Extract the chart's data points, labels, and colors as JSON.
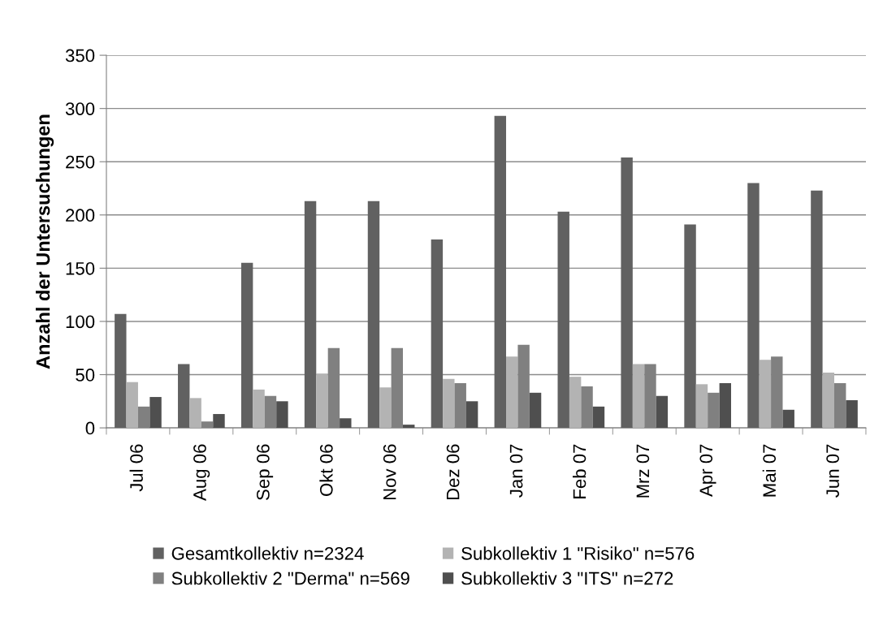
{
  "chart_data": {
    "type": "bar",
    "ylabel": "Anzahl der Untersuchungen",
    "categories": [
      "Jul 06",
      "Aug 06",
      "Sep 06",
      "Okt 06",
      "Nov 06",
      "Dez 06",
      "Jan 07",
      "Feb 07",
      "Mrz 07",
      "Apr 07",
      "Mai 07",
      "Jun 07"
    ],
    "series": [
      {
        "name": "Gesamtkollektiv n=2324",
        "color": "#616161",
        "values": [
          107,
          60,
          155,
          213,
          213,
          177,
          293,
          203,
          254,
          191,
          230,
          223
        ]
      },
      {
        "name": "Subkollektiv 1 \"Risiko\" n=576",
        "color": "#b3b3b3",
        "values": [
          43,
          28,
          36,
          51,
          38,
          46,
          67,
          48,
          60,
          41,
          64,
          52
        ]
      },
      {
        "name": "Subkollektiv 2 \"Derma\" n=569",
        "color": "#808080",
        "values": [
          20,
          6,
          30,
          75,
          75,
          42,
          78,
          39,
          60,
          33,
          67,
          42
        ]
      },
      {
        "name": "Subkollektiv 3 \"ITS\" n=272",
        "color": "#4f4f4f",
        "values": [
          29,
          13,
          25,
          9,
          3,
          25,
          33,
          20,
          30,
          42,
          17,
          26
        ]
      }
    ],
    "ylim": [
      0,
      350
    ],
    "yticks": [
      0,
      50,
      100,
      150,
      200,
      250,
      300,
      350
    ],
    "grid": "y",
    "legend": "bottom"
  }
}
